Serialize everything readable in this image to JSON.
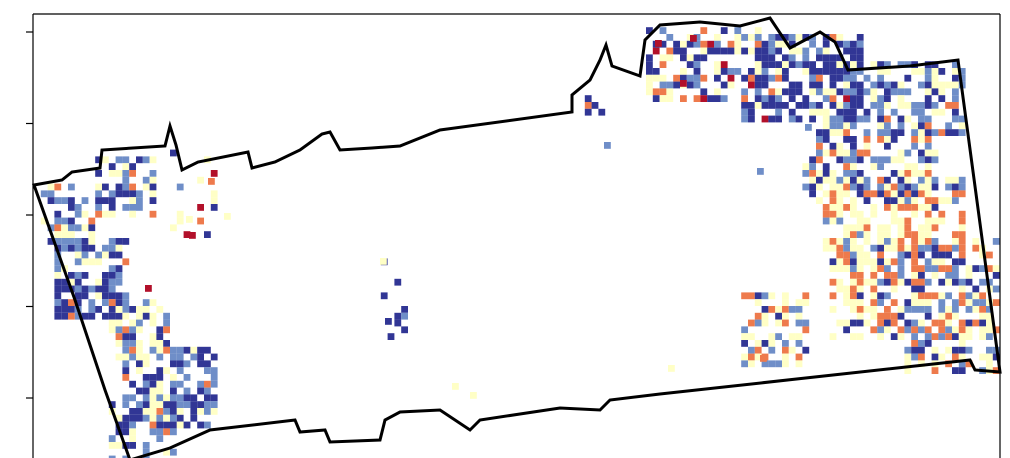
{
  "map": {
    "type": "raster-choropleth",
    "frame": "axes-box",
    "boundary_color": "#000000",
    "background": "#ffffff",
    "colors": {
      "dark_blue": "#313695",
      "mid_blue": "#6f8ec8",
      "pale_yellow": "#ffffc6",
      "orange": "#ee7a4c",
      "dark_red": "#b2102a"
    },
    "left_ticks": 5,
    "legend": "none"
  }
}
